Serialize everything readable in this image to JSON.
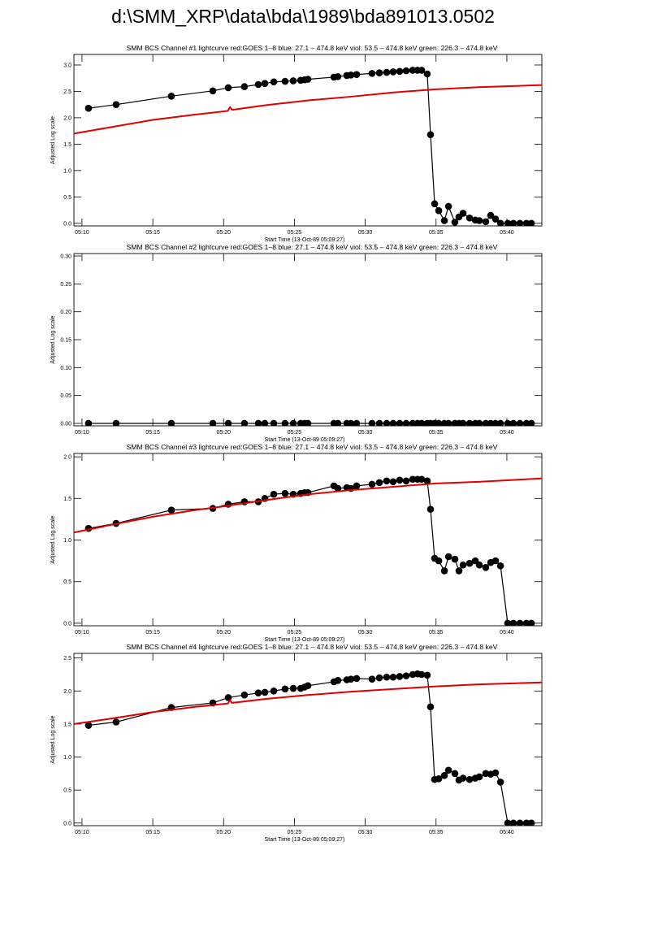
{
  "title": "d:\\SMM_XRP\\data\\bda\\1989\\bda891013.0502",
  "chart_data": [
    {
      "type": "line",
      "title": "SMM BCS Channel #1 lightcurve  red:GOES 1–8  blue: 27.1 – 474.8 keV  viol: 53.5 – 474.8 keV  green: 226.3 – 474.8 keV",
      "ylabel": "Adjusted Log scale",
      "xlabel": "Start Time (13-Oct-89 05:09:27)",
      "xlim": [
        9.43,
        42.47
      ],
      "ylim": [
        -0.05,
        3.2
      ],
      "xticks": [
        {
          "value": 10,
          "label": "05:10"
        },
        {
          "value": 15,
          "label": "05:15"
        },
        {
          "value": 20,
          "label": "05:20"
        },
        {
          "value": 25,
          "label": "05:25"
        },
        {
          "value": 30,
          "label": "05:30"
        },
        {
          "value": 35,
          "label": "05:35"
        },
        {
          "value": 40,
          "label": "05:40"
        }
      ],
      "yticks": [
        {
          "value": 0,
          "label": "0.0"
        },
        0.5,
        {
          "value": 1,
          "label": "1.0"
        },
        1.5,
        {
          "value": 2,
          "label": "2.0"
        },
        2.5,
        {
          "value": 3,
          "label": "3.0"
        }
      ],
      "series": [
        {
          "color": "#000000",
          "marker": "circle",
          "x": [
            10.46,
            12.41,
            16.31,
            19.24,
            20.33,
            21.47,
            22.45,
            22.91,
            23.54,
            24.34,
            24.92,
            25.44,
            25.72,
            25.95,
            27.79,
            28.07,
            28.7,
            28.99,
            29.39,
            30.48,
            31.0,
            31.51,
            31.97,
            32.43,
            32.89,
            33.35,
            33.69,
            33.98,
            34.38,
            34.61,
            34.9,
            35.19,
            35.59,
            35.88,
            36.33,
            36.62,
            36.91,
            37.37,
            37.77,
            38.06,
            38.51,
            38.86,
            39.2,
            39.55,
            40.06,
            40.46,
            40.92,
            41.38,
            41.73
          ],
          "values": [
            2.18,
            2.25,
            2.41,
            2.51,
            2.57,
            2.59,
            2.63,
            2.65,
            2.68,
            2.69,
            2.7,
            2.71,
            2.72,
            2.73,
            2.77,
            2.78,
            2.8,
            2.81,
            2.82,
            2.84,
            2.85,
            2.86,
            2.87,
            2.88,
            2.89,
            2.9,
            2.9,
            2.9,
            2.83,
            1.68,
            0.37,
            0.24,
            0.05,
            0.32,
            0.02,
            0.12,
            0.19,
            0.1,
            0.06,
            0.05,
            0.03,
            0.15,
            0.08,
            0,
            0,
            0,
            0,
            0,
            0
          ]
        },
        {
          "color": "#e00000",
          "x": [
            9.43,
            12,
            15,
            18,
            20.3,
            20.45,
            20.6,
            23,
            26,
            29,
            32,
            35,
            38,
            42.47
          ],
          "values": [
            1.7,
            1.82,
            1.96,
            2.06,
            2.13,
            2.2,
            2.15,
            2.24,
            2.33,
            2.4,
            2.48,
            2.54,
            2.58,
            2.62
          ]
        }
      ]
    },
    {
      "type": "line",
      "title": "SMM BCS Channel #2 lightcurve  red:GOES 1–8  blue: 27.1 – 474.8 keV  viol: 53.5 – 474.8 keV  green: 226.3 – 474.8 keV",
      "ylabel": "Adjusted Log scale",
      "xlabel": "Start Time (13-Oct-89 05:09:27)",
      "xlim": [
        9.43,
        42.47
      ],
      "ylim": [
        -0.0044,
        0.3044
      ],
      "xticks": [
        {
          "value": 10,
          "label": "05:10"
        },
        {
          "value": 15,
          "label": "05:15"
        },
        {
          "value": 20,
          "label": "05:20"
        },
        {
          "value": 25,
          "label": "05:25"
        },
        {
          "value": 30,
          "label": "05:30"
        },
        {
          "value": 35,
          "label": "05:35"
        },
        {
          "value": 40,
          "label": "05:40"
        }
      ],
      "yticks": [
        {
          "value": 0,
          "label": "0.00"
        },
        0.05,
        {
          "value": 0.1,
          "label": "0.10"
        },
        0.15,
        {
          "value": 0.2,
          "label": "0.20"
        },
        0.25,
        {
          "value": 0.3,
          "label": "0.30"
        }
      ],
      "series": [
        {
          "color": "#000000",
          "marker": "circle",
          "x": [
            10.46,
            12.41,
            16.31,
            19.24,
            20.33,
            21.47,
            22.45,
            22.91,
            23.54,
            24.34,
            24.92,
            25.44,
            25.72,
            25.95,
            27.79,
            28.07,
            28.7,
            28.99,
            29.39,
            30.48,
            31.0,
            31.51,
            31.97,
            32.43,
            32.89,
            33.35,
            33.69,
            33.98,
            34.38,
            34.61,
            34.9,
            35.19,
            35.59,
            35.88,
            36.33,
            36.62,
            36.91,
            37.37,
            37.77,
            38.06,
            38.51,
            38.86,
            39.2,
            39.55,
            40.06,
            40.46,
            40.92,
            41.38,
            41.73
          ],
          "values": [
            0,
            0,
            0,
            0,
            0,
            0,
            0,
            0,
            0,
            0,
            0,
            0,
            0,
            0,
            0,
            0,
            0,
            0,
            0,
            0,
            0,
            0,
            0,
            0,
            0,
            0,
            0,
            0,
            0,
            0,
            0,
            0,
            0,
            0,
            0,
            0,
            0,
            0,
            0,
            0,
            0,
            0,
            0,
            0,
            0,
            0,
            0,
            0,
            0
          ]
        }
      ]
    },
    {
      "type": "line",
      "title": "SMM BCS Channel #3 lightcurve  red:GOES 1–8  blue: 27.1 – 474.8 keV  viol: 53.5 – 474.8 keV  green: 226.3 – 474.8 keV",
      "ylabel": "Adjusted Log scale",
      "xlabel": "Start Time (13-Oct-89 05:09:27)",
      "xlim": [
        9.43,
        42.47
      ],
      "ylim": [
        -0.03,
        2.04
      ],
      "xticks": [
        {
          "value": 10,
          "label": "05:10"
        },
        {
          "value": 15,
          "label": "05:15"
        },
        {
          "value": 20,
          "label": "05:20"
        },
        {
          "value": 25,
          "label": "05:25"
        },
        {
          "value": 30,
          "label": "05:30"
        },
        {
          "value": 35,
          "label": "05:35"
        },
        {
          "value": 40,
          "label": "05:40"
        }
      ],
      "yticks": [
        {
          "value": 0,
          "label": "0.0"
        },
        0.5,
        {
          "value": 1,
          "label": "1.0"
        },
        1.5,
        {
          "value": 2,
          "label": "2.0"
        }
      ],
      "series": [
        {
          "color": "#000000",
          "marker": "circle",
          "x": [
            10.46,
            12.41,
            16.31,
            19.24,
            20.33,
            21.47,
            22.45,
            22.91,
            23.54,
            24.34,
            24.92,
            25.44,
            25.72,
            25.95,
            27.79,
            28.07,
            28.7,
            28.99,
            29.39,
            30.48,
            31.0,
            31.51,
            31.97,
            32.43,
            32.89,
            33.35,
            33.69,
            33.98,
            34.38,
            34.61,
            34.9,
            35.19,
            35.59,
            35.88,
            36.33,
            36.62,
            36.91,
            37.37,
            37.77,
            38.06,
            38.51,
            38.86,
            39.2,
            39.55,
            40.06,
            40.46,
            40.92,
            41.38,
            41.73
          ],
          "values": [
            1.14,
            1.2,
            1.36,
            1.38,
            1.43,
            1.46,
            1.46,
            1.5,
            1.55,
            1.56,
            1.55,
            1.56,
            1.57,
            1.57,
            1.65,
            1.62,
            1.63,
            1.62,
            1.65,
            1.67,
            1.69,
            1.71,
            1.7,
            1.72,
            1.71,
            1.73,
            1.73,
            1.73,
            1.71,
            1.37,
            0.78,
            0.75,
            0.63,
            0.8,
            0.77,
            0.63,
            0.7,
            0.72,
            0.75,
            0.7,
            0.67,
            0.73,
            0.75,
            0.69,
            0,
            0,
            0,
            0,
            0
          ]
        },
        {
          "color": "#e00000",
          "x": [
            9.43,
            12,
            15,
            18,
            20.3,
            20.45,
            20.6,
            23,
            26,
            29,
            32,
            35,
            38,
            42.47
          ],
          "values": [
            1.09,
            1.18,
            1.28,
            1.36,
            1.41,
            1.41,
            1.42,
            1.48,
            1.55,
            1.6,
            1.64,
            1.68,
            1.7,
            1.74
          ]
        }
      ]
    },
    {
      "type": "line",
      "title": "SMM BCS Channel #4 lightcurve  red:GOES 1–8  blue: 27.1 – 474.8 keV  viol: 53.5 – 474.8 keV  green: 226.3 – 474.8 keV",
      "ylabel": "Adjusted Log scale",
      "xlabel": "Start Time (13-Oct-89 05:09:27)",
      "xlim": [
        9.43,
        42.47
      ],
      "ylim": [
        -0.04,
        2.57
      ],
      "xticks": [
        {
          "value": 10,
          "label": "05:10"
        },
        {
          "value": 15,
          "label": "05:15"
        },
        {
          "value": 20,
          "label": "05:20"
        },
        {
          "value": 25,
          "label": "05:25"
        },
        {
          "value": 30,
          "label": "05:30"
        },
        {
          "value": 35,
          "label": "05:35"
        },
        {
          "value": 40,
          "label": "05:40"
        }
      ],
      "yticks": [
        {
          "value": 0,
          "label": "0.0"
        },
        0.5,
        {
          "value": 1,
          "label": "1.0"
        },
        1.5,
        {
          "value": 2,
          "label": "2.0"
        },
        2.5
      ],
      "series": [
        {
          "color": "#000000",
          "marker": "circle",
          "x": [
            10.46,
            12.41,
            16.31,
            19.24,
            20.33,
            21.47,
            22.45,
            22.91,
            23.54,
            24.34,
            24.92,
            25.44,
            25.72,
            25.95,
            27.79,
            28.07,
            28.7,
            28.99,
            29.39,
            30.48,
            31.0,
            31.51,
            31.97,
            32.43,
            32.89,
            33.35,
            33.69,
            33.98,
            34.38,
            34.61,
            34.9,
            35.19,
            35.59,
            35.88,
            36.33,
            36.62,
            36.91,
            37.37,
            37.77,
            38.06,
            38.51,
            38.86,
            39.2,
            39.55,
            40.06,
            40.46,
            40.92,
            41.38,
            41.73
          ],
          "values": [
            1.48,
            1.53,
            1.75,
            1.82,
            1.9,
            1.94,
            1.97,
            1.98,
            2.0,
            2.03,
            2.04,
            2.04,
            2.06,
            2.08,
            2.14,
            2.16,
            2.17,
            2.18,
            2.19,
            2.18,
            2.2,
            2.21,
            2.21,
            2.22,
            2.23,
            2.25,
            2.26,
            2.25,
            2.24,
            1.76,
            0.66,
            0.67,
            0.72,
            0.8,
            0.75,
            0.65,
            0.68,
            0.66,
            0.68,
            0.7,
            0.75,
            0.74,
            0.76,
            0.62,
            0,
            0,
            0,
            0,
            0
          ]
        },
        {
          "color": "#e00000",
          "x": [
            9.43,
            12,
            15,
            18,
            20.3,
            20.45,
            20.6,
            23,
            26,
            29,
            32,
            35,
            38,
            42.47
          ],
          "values": [
            1.5,
            1.58,
            1.68,
            1.76,
            1.81,
            1.86,
            1.82,
            1.88,
            1.94,
            1.99,
            2.03,
            2.07,
            2.1,
            2.13
          ]
        }
      ]
    }
  ]
}
